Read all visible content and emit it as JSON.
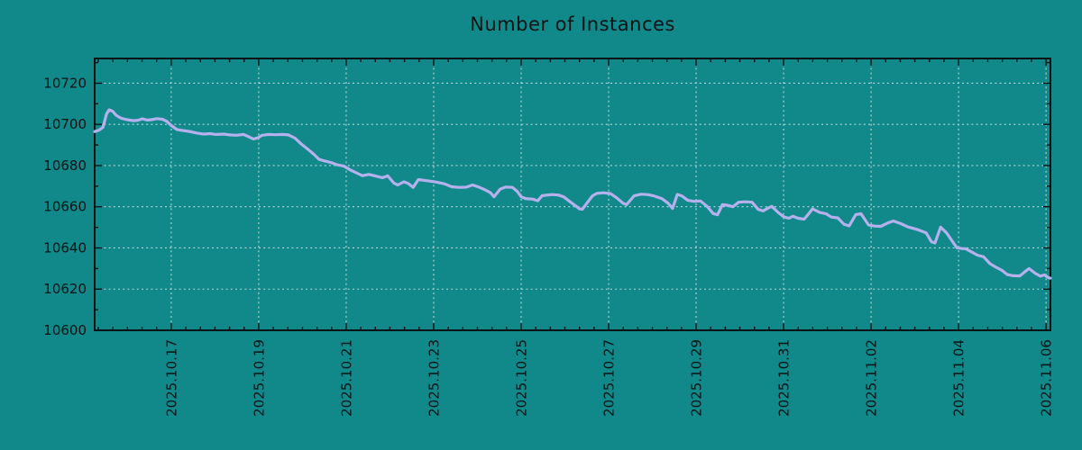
{
  "title": "Number of Instances",
  "colors": {
    "background": "#118889",
    "line": "#b5b1ec",
    "grid": "#d6e6e6",
    "axis": "#0a1414",
    "text": "#0a1414"
  },
  "chart_data": {
    "type": "line",
    "title": "Number of Instances",
    "xlabel": "",
    "ylabel": "",
    "grid": true,
    "legend": "none",
    "x_axis": {
      "unit": "date",
      "ticks": [
        {
          "label": "2025.10.17",
          "day": 1.75
        },
        {
          "label": "2025.10.19",
          "day": 3.75
        },
        {
          "label": "2025.10.21",
          "day": 5.75
        },
        {
          "label": "2025.10.23",
          "day": 7.75
        },
        {
          "label": "2025.10.25",
          "day": 9.75
        },
        {
          "label": "2025.10.27",
          "day": 11.75
        },
        {
          "label": "2025.10.29",
          "day": 13.75
        },
        {
          "label": "2025.10.31",
          "day": 15.75
        },
        {
          "label": "2025.11.02",
          "day": 17.75
        },
        {
          "label": "2025.11.04",
          "day": 19.75
        },
        {
          "label": "2025.11.06",
          "day": 21.75
        }
      ],
      "range_days": [
        0,
        21.85
      ],
      "minor_step_days": 0.33333
    },
    "y_axis": {
      "tick_values": [
        10600,
        10620,
        10640,
        10660,
        10680,
        10700,
        10720
      ],
      "range": [
        10600,
        10732
      ],
      "minor_step": 10
    },
    "series": [
      {
        "name": "instances",
        "color": "#b5b1ec",
        "points": [
          [
            0.0,
            10696.5
          ],
          [
            0.1,
            10697.2
          ],
          [
            0.19,
            10698.6
          ],
          [
            0.27,
            10705.0
          ],
          [
            0.33,
            10707.1
          ],
          [
            0.41,
            10706.4
          ],
          [
            0.49,
            10704.4
          ],
          [
            0.6,
            10703.0
          ],
          [
            0.74,
            10702.3
          ],
          [
            0.89,
            10701.8
          ],
          [
            0.99,
            10702.0
          ],
          [
            1.09,
            10702.7
          ],
          [
            1.2,
            10702.1
          ],
          [
            1.3,
            10702.3
          ],
          [
            1.42,
            10702.8
          ],
          [
            1.55,
            10702.5
          ],
          [
            1.65,
            10701.5
          ],
          [
            1.75,
            10699.5
          ],
          [
            1.88,
            10697.5
          ],
          [
            2.02,
            10697.0
          ],
          [
            2.16,
            10696.6
          ],
          [
            2.33,
            10695.8
          ],
          [
            2.49,
            10695.3
          ],
          [
            2.64,
            10695.5
          ],
          [
            2.78,
            10695.1
          ],
          [
            2.95,
            10695.3
          ],
          [
            3.09,
            10694.9
          ],
          [
            3.24,
            10694.7
          ],
          [
            3.4,
            10695.1
          ],
          [
            3.52,
            10694.0
          ],
          [
            3.63,
            10692.9
          ],
          [
            3.73,
            10693.5
          ],
          [
            3.83,
            10694.7
          ],
          [
            3.98,
            10695.1
          ],
          [
            4.14,
            10695.0
          ],
          [
            4.29,
            10695.1
          ],
          [
            4.43,
            10694.9
          ],
          [
            4.58,
            10693.3
          ],
          [
            4.72,
            10690.5
          ],
          [
            4.87,
            10688.0
          ],
          [
            5.01,
            10685.5
          ],
          [
            5.13,
            10683.0
          ],
          [
            5.26,
            10682.2
          ],
          [
            5.4,
            10681.5
          ],
          [
            5.54,
            10680.4
          ],
          [
            5.69,
            10679.8
          ],
          [
            5.85,
            10677.8
          ],
          [
            6.0,
            10676.3
          ],
          [
            6.12,
            10675.1
          ],
          [
            6.27,
            10675.7
          ],
          [
            6.41,
            10675.0
          ],
          [
            6.58,
            10674.1
          ],
          [
            6.7,
            10675.0
          ],
          [
            6.84,
            10671.5
          ],
          [
            6.93,
            10670.6
          ],
          [
            7.07,
            10672.1
          ],
          [
            7.17,
            10671.3
          ],
          [
            7.28,
            10669.4
          ],
          [
            7.4,
            10673.2
          ],
          [
            7.54,
            10672.8
          ],
          [
            7.69,
            10672.4
          ],
          [
            7.81,
            10672.0
          ],
          [
            8.0,
            10671.1
          ],
          [
            8.16,
            10669.7
          ],
          [
            8.33,
            10669.4
          ],
          [
            8.49,
            10669.5
          ],
          [
            8.64,
            10670.6
          ],
          [
            8.78,
            10669.6
          ],
          [
            8.93,
            10668.2
          ],
          [
            9.05,
            10666.8
          ],
          [
            9.13,
            10664.8
          ],
          [
            9.27,
            10668.6
          ],
          [
            9.4,
            10669.6
          ],
          [
            9.55,
            10669.4
          ],
          [
            9.66,
            10667.5
          ],
          [
            9.75,
            10664.8
          ],
          [
            9.85,
            10664.0
          ],
          [
            10.02,
            10663.7
          ],
          [
            10.13,
            10662.9
          ],
          [
            10.23,
            10665.4
          ],
          [
            10.45,
            10665.9
          ],
          [
            10.6,
            10665.7
          ],
          [
            10.72,
            10664.8
          ],
          [
            10.86,
            10662.6
          ],
          [
            11.01,
            10660.2
          ],
          [
            11.08,
            10659.0
          ],
          [
            11.15,
            10658.8
          ],
          [
            11.26,
            10662.0
          ],
          [
            11.38,
            10665.3
          ],
          [
            11.48,
            10666.5
          ],
          [
            11.63,
            10666.8
          ],
          [
            11.79,
            10666.4
          ],
          [
            11.93,
            10664.4
          ],
          [
            12.08,
            10661.7
          ],
          [
            12.16,
            10661.0
          ],
          [
            12.33,
            10665.3
          ],
          [
            12.49,
            10666.1
          ],
          [
            12.64,
            10665.9
          ],
          [
            12.78,
            10665.3
          ],
          [
            12.97,
            10663.9
          ],
          [
            13.11,
            10661.7
          ],
          [
            13.21,
            10659.2
          ],
          [
            13.32,
            10666.0
          ],
          [
            13.42,
            10665.3
          ],
          [
            13.56,
            10663.1
          ],
          [
            13.71,
            10662.6
          ],
          [
            13.85,
            10662.8
          ],
          [
            14.0,
            10660.2
          ],
          [
            14.14,
            10656.7
          ],
          [
            14.24,
            10656.1
          ],
          [
            14.35,
            10661.0
          ],
          [
            14.47,
            10660.7
          ],
          [
            14.59,
            10660.0
          ],
          [
            14.72,
            10662.2
          ],
          [
            14.88,
            10662.4
          ],
          [
            15.03,
            10662.2
          ],
          [
            15.17,
            10658.7
          ],
          [
            15.28,
            10658.0
          ],
          [
            15.4,
            10659.4
          ],
          [
            15.48,
            10660.2
          ],
          [
            15.62,
            10657.3
          ],
          [
            15.75,
            10655.1
          ],
          [
            15.87,
            10654.4
          ],
          [
            15.96,
            10655.4
          ],
          [
            16.08,
            10654.4
          ],
          [
            16.22,
            10654.0
          ],
          [
            16.35,
            10657.3
          ],
          [
            16.41,
            10659.0
          ],
          [
            16.57,
            10657.3
          ],
          [
            16.72,
            10656.6
          ],
          [
            16.84,
            10655.0
          ],
          [
            16.99,
            10654.6
          ],
          [
            17.13,
            10651.5
          ],
          [
            17.25,
            10650.7
          ],
          [
            17.4,
            10656.2
          ],
          [
            17.52,
            10656.6
          ],
          [
            17.69,
            10651.2
          ],
          [
            17.83,
            10650.6
          ],
          [
            17.97,
            10650.5
          ],
          [
            18.14,
            10652.2
          ],
          [
            18.26,
            10653.1
          ],
          [
            18.43,
            10651.8
          ],
          [
            18.59,
            10650.2
          ],
          [
            18.8,
            10649.0
          ],
          [
            19.01,
            10647.3
          ],
          [
            19.13,
            10643.0
          ],
          [
            19.21,
            10642.4
          ],
          [
            19.34,
            10650.1
          ],
          [
            19.48,
            10647.2
          ],
          [
            19.6,
            10643.5
          ],
          [
            19.71,
            10640.1
          ],
          [
            19.83,
            10639.7
          ],
          [
            19.91,
            10639.6
          ],
          [
            20.06,
            10637.9
          ],
          [
            20.18,
            10636.5
          ],
          [
            20.32,
            10635.7
          ],
          [
            20.47,
            10632.3
          ],
          [
            20.59,
            10630.8
          ],
          [
            20.74,
            10629.1
          ],
          [
            20.86,
            10627.1
          ],
          [
            21.0,
            10626.5
          ],
          [
            21.15,
            10626.4
          ],
          [
            21.27,
            10628.5
          ],
          [
            21.36,
            10630.0
          ],
          [
            21.5,
            10627.7
          ],
          [
            21.62,
            10626.3
          ],
          [
            21.71,
            10626.9
          ],
          [
            21.81,
            10625.5
          ],
          [
            21.85,
            10625.3
          ]
        ]
      }
    ]
  }
}
